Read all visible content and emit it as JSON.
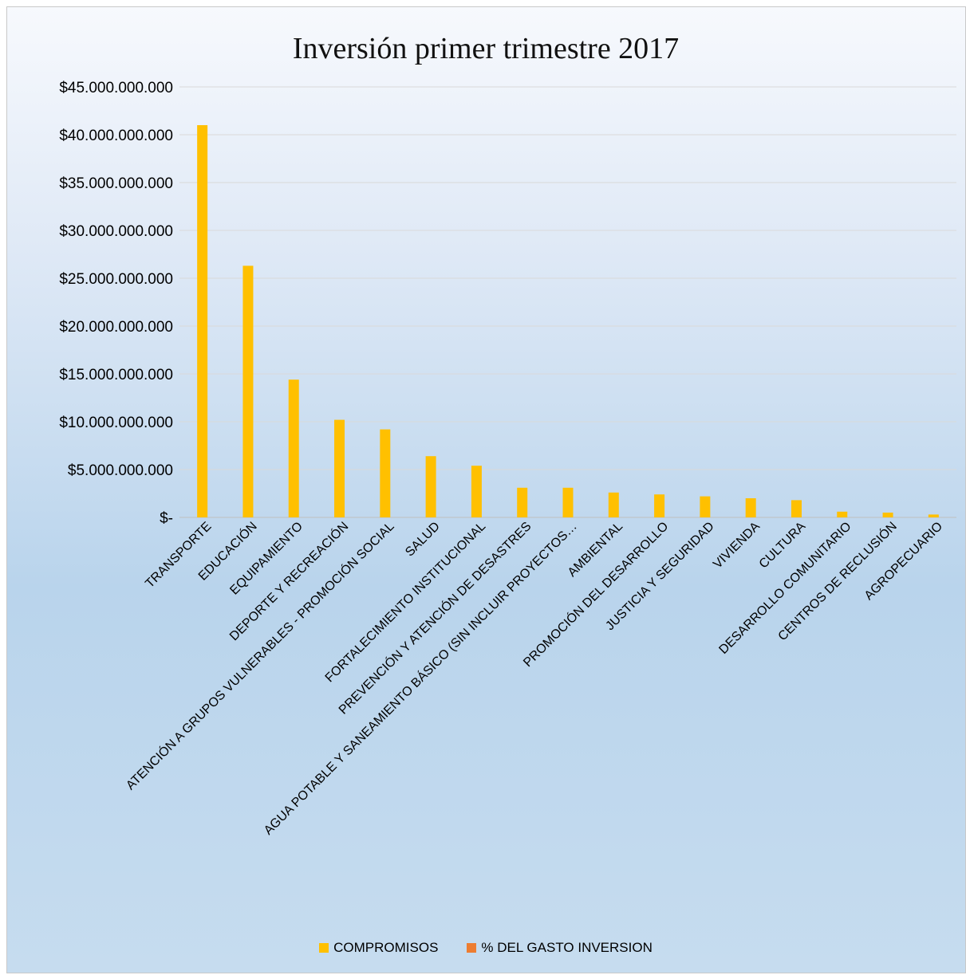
{
  "chart_data": {
    "type": "bar",
    "title": "Inversión primer trimestre 2017",
    "xlabel": "",
    "ylabel": "",
    "ylim": [
      0,
      45000000000
    ],
    "y_ticks": [
      {
        "value": 0,
        "label": "$-"
      },
      {
        "value": 5000000000,
        "label": "$5.000.000.000"
      },
      {
        "value": 10000000000,
        "label": "$10.000.000.000"
      },
      {
        "value": 15000000000,
        "label": "$15.000.000.000"
      },
      {
        "value": 20000000000,
        "label": "$20.000.000.000"
      },
      {
        "value": 25000000000,
        "label": "$25.000.000.000"
      },
      {
        "value": 30000000000,
        "label": "$30.000.000.000"
      },
      {
        "value": 35000000000,
        "label": "$35.000.000.000"
      },
      {
        "value": 40000000000,
        "label": "$40.000.000.000"
      },
      {
        "value": 45000000000,
        "label": "$45.000.000.000"
      }
    ],
    "grid": true,
    "legend_position": "bottom",
    "categories": [
      "TRANSPORTE",
      "EDUCACIÓN",
      "EQUIPAMIENTO",
      "DEPORTE Y RECREACIÓN",
      "ATENCIÓN A GRUPOS VULNERABLES - PROMOCIÓN SOCIAL",
      "SALUD",
      "FORTALECIMIENTO INSTITUCIONAL",
      "PREVENCIÓN Y ATENCIÓN DE DESASTRES",
      "AGUA POTABLE Y SANEAMIENTO BÁSICO  (SIN INCLUIR PROYECTOS…",
      "AMBIENTAL",
      "PROMOCIÓN DEL DESARROLLO",
      "JUSTICIA Y SEGURIDAD",
      "VIVIENDA",
      "CULTURA",
      "DESARROLLO COMUNITARIO",
      "CENTROS DE RECLUSIÓN",
      "AGROPECUARIO"
    ],
    "series": [
      {
        "name": "COMPROMISOS",
        "color": "#FFC000",
        "values": [
          41000000000,
          26300000000,
          14400000000,
          10200000000,
          9200000000,
          6400000000,
          5400000000,
          3100000000,
          3100000000,
          2600000000,
          2400000000,
          2200000000,
          2000000000,
          1800000000,
          600000000,
          500000000,
          300000000
        ]
      },
      {
        "name": "% DEL GASTO INVERSION",
        "color": "#ED7D31",
        "values": [
          0,
          0,
          0,
          0,
          0,
          0,
          0,
          0,
          0,
          0,
          0,
          0,
          0,
          0,
          0,
          0,
          0
        ]
      }
    ]
  }
}
